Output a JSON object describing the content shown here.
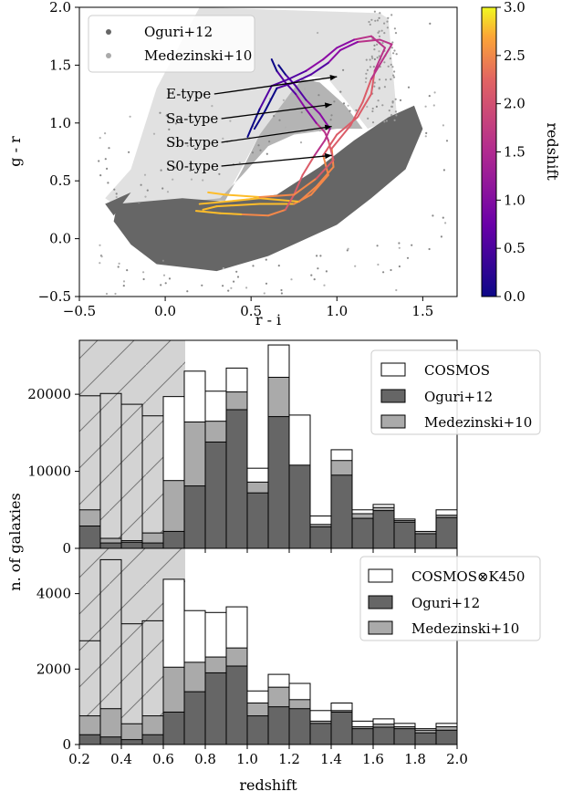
{
  "chart_data": [
    {
      "type": "scatter",
      "xlabel": "r - i",
      "ylabel": "g - r",
      "xlim": [
        -0.5,
        1.7
      ],
      "ylim": [
        -0.5,
        2.0
      ],
      "xticks": [
        "-0.5",
        "0.0",
        "0.5",
        "1.0",
        "1.5"
      ],
      "yticks": [
        "-0.5",
        "0.0",
        "0.5",
        "1.0",
        "1.5",
        "2.0"
      ],
      "legend": {
        "placement": "top-left",
        "entries": [
          "Oguri+12",
          "Medezinski+10"
        ]
      },
      "series": [
        {
          "name": "Oguri+12",
          "color": "#666666"
        },
        {
          "name": "Medezinski+10",
          "color": "#aaaaaa"
        }
      ],
      "colorbar": {
        "label": "redshift",
        "range": [
          0.0,
          3.0
        ],
        "ticks": [
          "0.0",
          "0.5",
          "1.0",
          "1.5",
          "2.0",
          "2.5",
          "3.0"
        ]
      },
      "annotations": [
        {
          "text": "E-type",
          "points_to": [
            1.0,
            1.4
          ]
        },
        {
          "text": "Sa-type",
          "points_to": [
            0.97,
            1.16
          ]
        },
        {
          "text": "Sb-type",
          "points_to": [
            0.97,
            0.97
          ]
        },
        {
          "text": "S0-type",
          "points_to": [
            0.97,
            0.72
          ]
        }
      ],
      "tracks": [
        {
          "name": "E-type",
          "points": [
            [
              0.22,
              0.25
            ],
            [
              0.3,
              0.28
            ],
            [
              0.55,
              0.3
            ],
            [
              0.75,
              0.3
            ],
            [
              0.85,
              0.38
            ],
            [
              0.95,
              0.55
            ],
            [
              0.92,
              0.72
            ],
            [
              1.0,
              0.9
            ],
            [
              1.12,
              1.05
            ],
            [
              1.2,
              1.25
            ],
            [
              1.22,
              1.45
            ],
            [
              1.28,
              1.65
            ],
            [
              1.2,
              1.75
            ],
            [
              1.1,
              1.72
            ],
            [
              1.0,
              1.65
            ],
            [
              0.92,
              1.55
            ],
            [
              0.82,
              1.45
            ],
            [
              0.72,
              1.38
            ],
            [
              0.62,
              1.32
            ],
            [
              0.55,
              1.12
            ],
            [
              0.5,
              0.95
            ],
            [
              0.48,
              0.88
            ]
          ]
        },
        {
          "name": "Sa-type",
          "points": [
            [
              0.2,
              0.3
            ],
            [
              0.35,
              0.32
            ],
            [
              0.55,
              0.35
            ],
            [
              0.78,
              0.32
            ],
            [
              0.88,
              0.45
            ],
            [
              0.98,
              0.62
            ],
            [
              0.97,
              0.78
            ],
            [
              1.08,
              0.98
            ],
            [
              1.15,
              1.18
            ],
            [
              1.2,
              1.38
            ],
            [
              1.32,
              1.68
            ],
            [
              1.25,
              1.72
            ],
            [
              1.12,
              1.7
            ],
            [
              1.02,
              1.63
            ],
            [
              0.95,
              1.52
            ],
            [
              0.85,
              1.42
            ],
            [
              0.75,
              1.35
            ],
            [
              0.65,
              1.3
            ],
            [
              0.58,
              1.1
            ],
            [
              0.52,
              0.95
            ]
          ]
        },
        {
          "name": "Sb-type",
          "points": [
            [
              0.18,
              0.24
            ],
            [
              0.32,
              0.22
            ],
            [
              0.45,
              0.21
            ],
            [
              0.6,
              0.2
            ],
            [
              0.7,
              0.25
            ],
            [
              0.75,
              0.38
            ],
            [
              0.8,
              0.55
            ],
            [
              0.87,
              0.72
            ],
            [
              0.93,
              0.85
            ],
            [
              0.96,
              0.95
            ],
            [
              0.9,
              1.08
            ],
            [
              0.82,
              1.2
            ],
            [
              0.76,
              1.32
            ],
            [
              0.7,
              1.42
            ],
            [
              0.66,
              1.5
            ]
          ]
        },
        {
          "name": "S0-type",
          "points": [
            [
              0.25,
              0.4
            ],
            [
              0.35,
              0.38
            ],
            [
              0.55,
              0.36
            ],
            [
              0.75,
              0.38
            ],
            [
              0.88,
              0.52
            ],
            [
              0.98,
              0.68
            ],
            [
              0.95,
              0.85
            ],
            [
              0.93,
              0.92
            ],
            [
              0.88,
              1.0
            ],
            [
              0.82,
              1.12
            ],
            [
              0.76,
              1.25
            ],
            [
              0.7,
              1.35
            ],
            [
              0.65,
              1.45
            ],
            [
              0.62,
              1.55
            ]
          ]
        }
      ]
    },
    {
      "type": "bar",
      "ylabel": "n. of galaxies",
      "xlim": [
        0.2,
        2.0
      ],
      "ylim": [
        0,
        27000
      ],
      "bin_width": 0.1,
      "bin_starts": [
        0.2,
        0.3,
        0.4,
        0.5,
        0.6,
        0.7,
        0.8,
        0.9,
        1.0,
        1.1,
        1.2,
        1.3,
        1.4,
        1.5,
        1.6,
        1.7,
        1.8,
        1.9
      ],
      "yticks": [
        "0",
        "10000",
        "20000"
      ],
      "shaded_x_range": [
        0.2,
        0.6
      ],
      "legend": {
        "placement": "top-right",
        "entries": [
          "COSMOS",
          "Oguri+12",
          "Medezinski+10"
        ]
      },
      "series": [
        {
          "name": "COSMOS",
          "color": "#ffffff",
          "values": [
            19800,
            20100,
            18700,
            17200,
            19700,
            23000,
            20400,
            23400,
            10400,
            26400,
            17300,
            4200,
            12800,
            5000,
            5700,
            3800,
            2100,
            5000
          ]
        },
        {
          "name": "Medezinski+10",
          "color": "#aaaaaa",
          "values": [
            5000,
            1300,
            1000,
            2000,
            8800,
            16400,
            16500,
            20300,
            8600,
            22200,
            10700,
            3100,
            11400,
            4500,
            5300,
            3600,
            2200,
            4300
          ]
        },
        {
          "name": "Oguri+12",
          "color": "#666666",
          "values": [
            2900,
            700,
            800,
            700,
            2200,
            8100,
            13800,
            18000,
            7200,
            17100,
            10800,
            2800,
            9500,
            3900,
            4900,
            3400,
            1900,
            4000
          ]
        }
      ]
    },
    {
      "type": "bar",
      "xlabel": "redshift",
      "xlim": [
        0.2,
        2.0
      ],
      "ylim": [
        0,
        5200
      ],
      "bin_width": 0.1,
      "bin_starts": [
        0.2,
        0.3,
        0.4,
        0.5,
        0.6,
        0.7,
        0.8,
        0.9,
        1.0,
        1.1,
        1.2,
        1.3,
        1.4,
        1.5,
        1.6,
        1.7,
        1.8,
        1.9
      ],
      "xticks": [
        "0.2",
        "0.4",
        "0.6",
        "0.8",
        "1.0",
        "1.2",
        "1.4",
        "1.6",
        "1.8",
        "2.0"
      ],
      "yticks": [
        "0",
        "2000",
        "4000"
      ],
      "shaded_x_range": [
        0.2,
        0.6
      ],
      "legend": {
        "placement": "top-right",
        "entries": [
          "COSMOS⊗K450",
          "Oguri+12",
          "Medezinski+10"
        ]
      },
      "series": [
        {
          "name": "COSMOS⊗K450",
          "color": "#ffffff",
          "values": [
            2750,
            4900,
            3200,
            3280,
            4380,
            3550,
            3500,
            3650,
            1420,
            1860,
            1620,
            900,
            1100,
            620,
            680,
            560,
            420,
            560
          ]
        },
        {
          "name": "Medezinski+10",
          "color": "#aaaaaa",
          "values": [
            760,
            950,
            550,
            760,
            2050,
            2180,
            2320,
            2560,
            1100,
            1520,
            1190,
            620,
            900,
            470,
            540,
            470,
            380,
            470
          ]
        },
        {
          "name": "Oguri+12",
          "color": "#666666",
          "values": [
            260,
            200,
            130,
            260,
            860,
            1400,
            1900,
            2080,
            760,
            1000,
            950,
            560,
            860,
            420,
            460,
            420,
            310,
            380
          ]
        }
      ]
    }
  ]
}
